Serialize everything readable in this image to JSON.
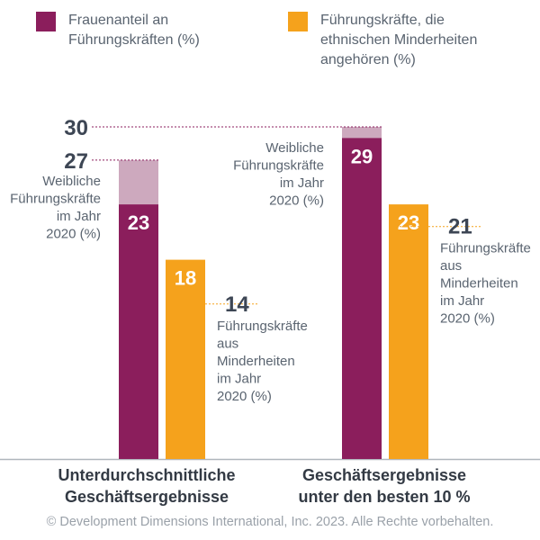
{
  "colors": {
    "women": "#8b1e5c",
    "women_previous": "#cda9be",
    "minorities": "#f5a21c",
    "annotation_text": "#5a6470",
    "annotation_number": "#3d4654",
    "axis": "#b0b6bc"
  },
  "legend": [
    {
      "label": "Frauenanteil an\nFührungskräften (%)",
      "color": "#8b1e5c"
    },
    {
      "label": "Führungskräfte, die\nethnischen Minderheiten\nangehören (%)",
      "color": "#f5a21c"
    }
  ],
  "chart_data": {
    "type": "bar",
    "categories": [
      "Unterdurchschnittliche\nGeschäftsergebnisse",
      "Geschäftsergebnisse\nunter den besten 10 %"
    ],
    "ylim": [
      0,
      35
    ],
    "series": [
      {
        "key": "women",
        "values": [
          23,
          29
        ],
        "data_labels": [
          "23",
          "29"
        ],
        "previous_values": [
          27,
          30
        ],
        "previous_labels": [
          "27",
          "30"
        ],
        "previous_caption": "Weibliche\nFührungskräfte\nim Jahr\n2020 (%)"
      },
      {
        "key": "minorities",
        "values": [
          18,
          23
        ],
        "data_labels": [
          "18",
          "23"
        ],
        "previous_values": [
          14,
          21
        ],
        "previous_labels": [
          "14",
          "21"
        ],
        "previous_caption": "Führungskräfte\naus\nMinderheiten\nim Jahr\n2020 (%)"
      }
    ]
  },
  "copyright": "© Development Dimensions International, Inc. 2023. Alle Rechte vorbehalten."
}
